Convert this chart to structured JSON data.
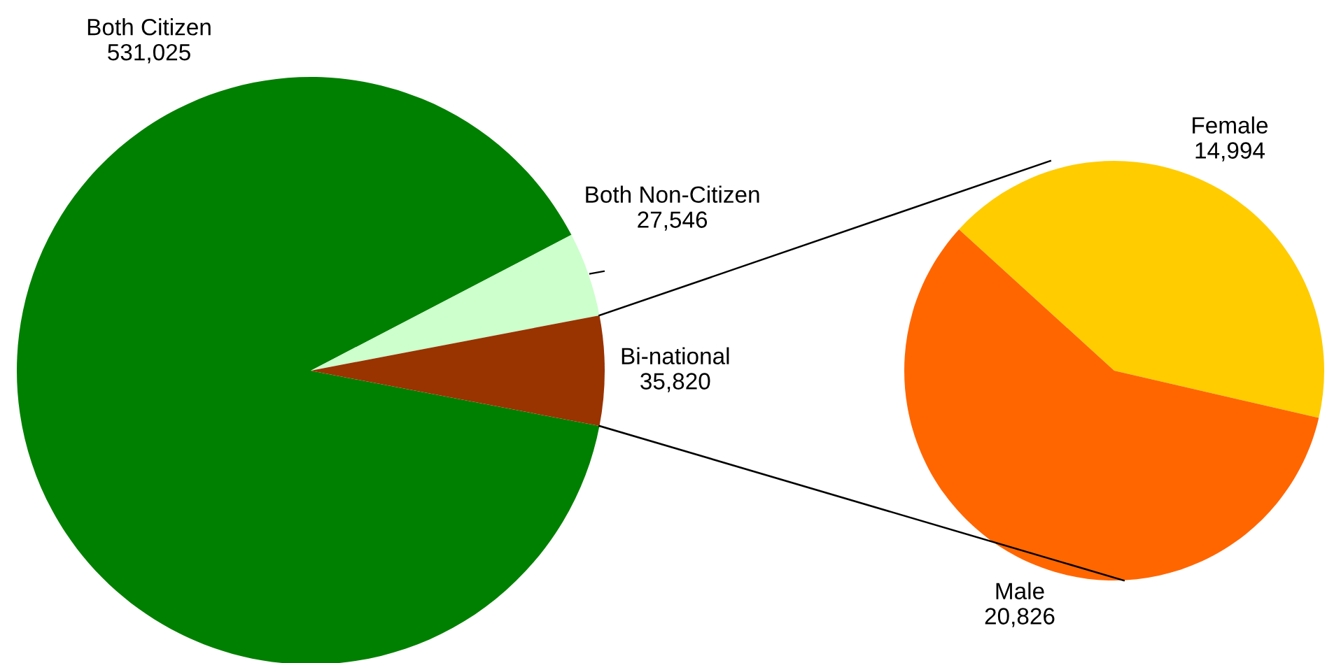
{
  "chart_data": [
    {
      "type": "pie",
      "categories": [
        "Both Citizen",
        "Both Non-Citizen",
        "Bi-national"
      ],
      "values": [
        531025,
        27546,
        35820
      ],
      "colors": [
        "#008000",
        "#ccffcc",
        "#993300"
      ],
      "value_labels": [
        "531,025",
        "27,546",
        "35,820"
      ],
      "legend": false
    },
    {
      "type": "pie",
      "categories": [
        "Female",
        "Male"
      ],
      "values": [
        14994,
        20826
      ],
      "colors": [
        "#ffcc00",
        "#ff6600"
      ],
      "value_labels": [
        "14,994",
        "20,826"
      ],
      "legend": false
    }
  ]
}
